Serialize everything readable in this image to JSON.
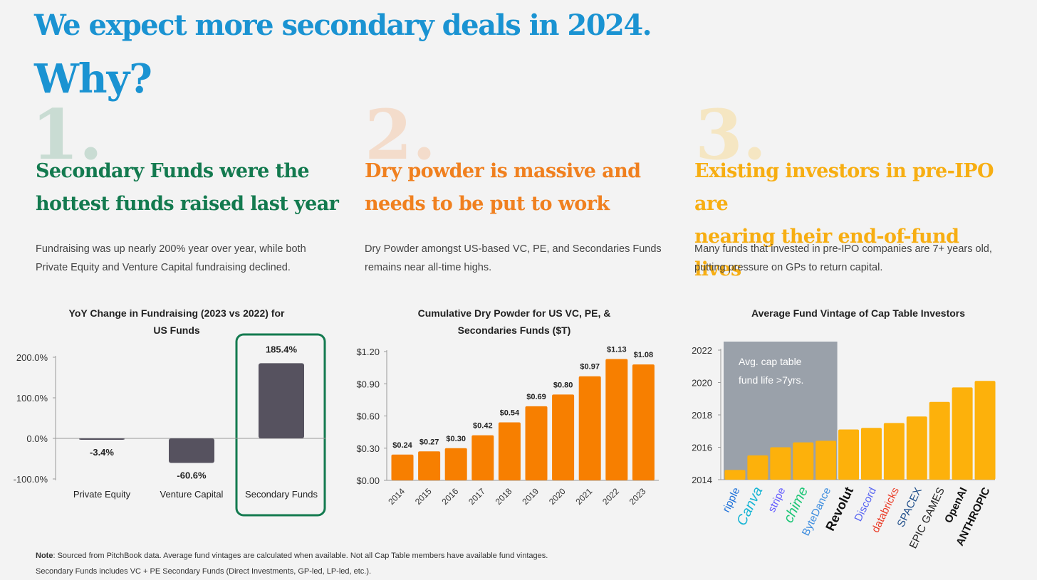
{
  "header": {
    "title": "We expect more secondary deals in 2024.",
    "subtitle": "Why?"
  },
  "columns": [
    {
      "number": "1.",
      "heading_line1": "Secondary Funds were the",
      "heading_line2": "hottest funds raised last year",
      "desc_line1": "Fundraising was up nearly 200% year over year, while both",
      "desc_line2": "Private Equity and Venture Capital fundraising declined.",
      "chart_title_line1": "YoY Change in Fundraising (2023 vs 2022) for",
      "chart_title_line2": "US Funds",
      "color": "#137a4f",
      "number_color": "#c9dcd3"
    },
    {
      "number": "2.",
      "heading_line1": "Dry powder is massive and",
      "heading_line2": "needs to be put to work",
      "desc_line1": "Dry Powder amongst US-based VC, PE, and Secondaries Funds",
      "desc_line2": "remains near all-time highs.",
      "chart_title_line1": "Cumulative Dry Powder for US VC, PE, &",
      "chart_title_line2": "Secondaries Funds ($T)",
      "color": "#f0801f",
      "number_color": "#f3dccb"
    },
    {
      "number": "3.",
      "heading_line1": "Existing investors in pre-IPO are",
      "heading_line2": "nearing their end-of-fund lives",
      "desc_line1": "Many funds that invested in pre-IPO companies are 7+ years old,",
      "desc_line2": "putting pressure on GPs to return capital.",
      "chart_title_line1": "Average Fund Vintage of Cap Table Investors",
      "color": "#f7ae12",
      "number_color": "#f5e6c2"
    }
  ],
  "chart_data": [
    {
      "type": "bar",
      "title": "YoY Change in Fundraising (2023 vs 2022) for US Funds",
      "categories": [
        "Private Equity",
        "Venture Capital",
        "Secondary Funds"
      ],
      "values": [
        -3.4,
        -60.6,
        185.4
      ],
      "value_labels": [
        "-3.4%",
        "-60.6%",
        "185.4%"
      ],
      "y_ticks": [
        "200.0%",
        "100.0%",
        "0.0%",
        "-100.0%"
      ],
      "y_tick_values": [
        200,
        100,
        0,
        -100
      ],
      "ylim": [
        -100,
        200
      ],
      "highlight": "Secondary Funds",
      "bar_color": "#56525f",
      "highlight_color": "#137a4f"
    },
    {
      "type": "bar",
      "title": "Cumulative Dry Powder for US VC, PE, & Secondaries Funds ($T)",
      "categories": [
        "2014",
        "2015",
        "2016",
        "2017",
        "2018",
        "2019",
        "2020",
        "2021",
        "2022",
        "2023"
      ],
      "values": [
        0.24,
        0.27,
        0.3,
        0.42,
        0.54,
        0.69,
        0.8,
        0.97,
        1.13,
        1.08
      ],
      "value_labels": [
        "$0.24",
        "$0.27",
        "$0.30",
        "$0.42",
        "$0.54",
        "$0.69",
        "$0.80",
        "$0.97",
        "$1.13",
        "$1.08"
      ],
      "y_ticks": [
        "$1.20",
        "$0.90",
        "$0.60",
        "$0.30",
        "$0.00"
      ],
      "y_tick_values": [
        1.2,
        0.9,
        0.6,
        0.3,
        0
      ],
      "ylim": [
        0,
        1.2
      ],
      "bar_color": "#f77f00"
    },
    {
      "type": "bar",
      "title": "Average Fund Vintage of Cap Table Investors",
      "categories": [
        "ripple",
        "Canva",
        "stripe",
        "chime",
        "ByteDance",
        "Revolut",
        "Discord",
        "databricks",
        "SPACEX",
        "EPIC GAMES",
        "OpenAI",
        "ANTHROPIC"
      ],
      "values": [
        2014.6,
        2015.5,
        2016.0,
        2016.3,
        2016.4,
        2017.1,
        2017.2,
        2017.5,
        2017.9,
        2018.8,
        2019.7,
        2020.1
      ],
      "y_ticks": [
        "2022",
        "2020",
        "2018",
        "2016",
        "2014"
      ],
      "y_tick_values": [
        2022,
        2020,
        2018,
        2016,
        2014
      ],
      "ylim": [
        2014,
        2022
      ],
      "bar_color": "#fdb10b",
      "annotation_line1": "Avg. cap table",
      "annotation_line2": "fund life >7yrs.",
      "annotation_color": "#9aa1aa",
      "logo_colors": [
        "#1a6fd9",
        "#19b5d4",
        "#635bff",
        "#1ec677",
        "#3c8cde",
        "#111111",
        "#5865f2",
        "#ea3a25",
        "#1f4e8a",
        "#222222",
        "#111111",
        "#111111"
      ]
    }
  ],
  "note": {
    "label": "Note",
    "line1": ": Sourced from PitchBook data. Average fund vintages are calculated when available. Not all Cap Table members have available fund vintages.",
    "line2": "Secondary Funds includes VC + PE Secondary Funds (Direct Investments, GP-led, LP-led, etc.)."
  }
}
